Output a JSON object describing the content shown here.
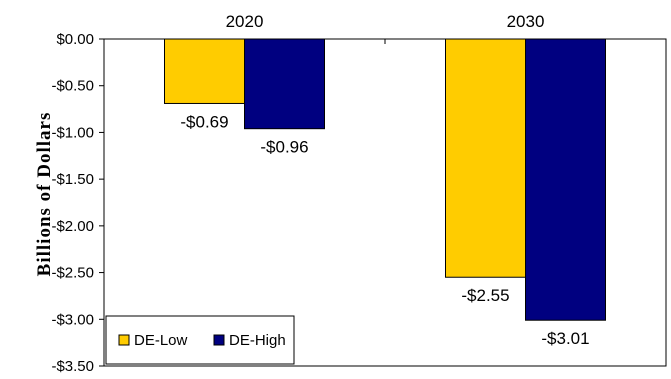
{
  "chart_data": {
    "type": "bar",
    "categories": [
      "2020",
      "2030"
    ],
    "series": [
      {
        "name": "DE-Low",
        "values": [
          -0.69,
          -2.55
        ],
        "labels": [
          "-$0.69",
          "-$2.55"
        ],
        "color": "#FFCC00"
      },
      {
        "name": "DE-High",
        "values": [
          -0.96,
          -3.01
        ],
        "labels": [
          "-$0.96",
          "-$3.01"
        ],
        "color": "#000080"
      }
    ],
    "ylabel": "Billions of Dollars",
    "ylim": [
      -3.5,
      0
    ],
    "yticks": [
      0,
      -0.5,
      -1.0,
      -1.5,
      -2.0,
      -2.5,
      -3.0,
      -3.5
    ],
    "ytick_labels": [
      "$0.00",
      "-$0.50",
      "-$1.00",
      "-$1.50",
      "-$2.00",
      "-$2.50",
      "-$3.00",
      "-$3.50"
    ],
    "category_axis_position": "top",
    "grid": false,
    "legend": "bottom-left"
  }
}
